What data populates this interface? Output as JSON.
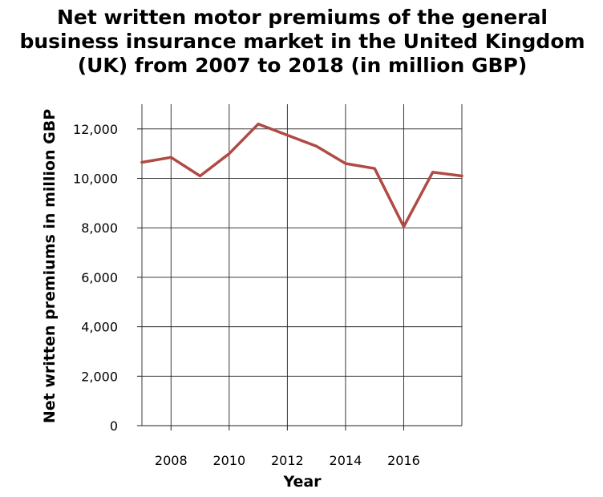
{
  "chart_data": {
    "type": "line",
    "title_lines": [
      "Net written motor premiums of the general",
      "business insurance market in the United Kingdom",
      "(UK) from 2007 to 2018 (in million GBP)"
    ],
    "xlabel": "Year",
    "ylabel": "Net written premiums in million GBP",
    "x": [
      2007,
      2008,
      2009,
      2010,
      2011,
      2012,
      2013,
      2014,
      2015,
      2016,
      2017,
      2018
    ],
    "series": [
      {
        "values": [
          10650,
          10850,
          10100,
          11000,
          12200,
          11750,
          11300,
          10600,
          10400,
          8050,
          10250,
          10100
        ]
      }
    ],
    "xlim": [
      2007,
      2018
    ],
    "ylim": [
      0,
      13000
    ],
    "x_ticks": [
      2008,
      2010,
      2012,
      2014,
      2016
    ],
    "x_tick_labels": [
      "2008",
      "2010",
      "2012",
      "2014",
      "2016"
    ],
    "y_ticks": [
      0,
      2000,
      4000,
      6000,
      8000,
      10000,
      12000
    ],
    "y_tick_labels": [
      "0",
      "2,000",
      "4,000",
      "6,000",
      "8,000",
      "10,000",
      "12,000"
    ],
    "grid": true,
    "line_color": "#b04a45"
  }
}
